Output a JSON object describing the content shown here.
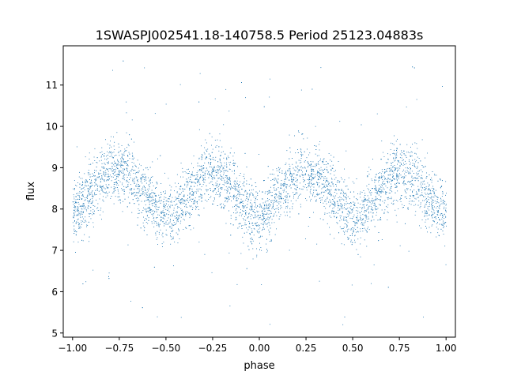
{
  "chart_data": {
    "type": "scatter",
    "title": "1SWASPJ002541.18-140758.5 Period 25123.04883s",
    "xlabel": "phase",
    "ylabel": "flux",
    "xlim": [
      -1.05,
      1.05
    ],
    "ylim": [
      4.9,
      11.95
    ],
    "xticks": [
      -1.0,
      -0.75,
      -0.5,
      -0.25,
      0.0,
      0.25,
      0.5,
      0.75,
      1.0
    ],
    "xtick_labels": [
      "−1.00",
      "−0.75",
      "−0.50",
      "−0.25",
      "0.00",
      "0.25",
      "0.50",
      "0.75",
      "1.00"
    ],
    "yticks": [
      5,
      6,
      7,
      8,
      9,
      10,
      11
    ],
    "ytick_labels": [
      "5",
      "6",
      "7",
      "8",
      "9",
      "10",
      "11"
    ],
    "grid": false,
    "marker_color": "#1f77b4",
    "series": [
      {
        "x": [
          -1.0,
          -0.95,
          -0.9,
          -0.85,
          -0.8,
          -0.75,
          -0.7,
          -0.65,
          -0.6,
          -0.55,
          -0.5,
          -0.45,
          -0.4,
          -0.35,
          -0.3,
          -0.25,
          -0.2,
          -0.15,
          -0.1,
          -0.05,
          0.0,
          0.05,
          0.1,
          0.15,
          0.2,
          0.25,
          0.3,
          0.35,
          0.4,
          0.45,
          0.5,
          0.55,
          0.6,
          0.65,
          0.7,
          0.75,
          0.8,
          0.85,
          0.9,
          0.95,
          1.0
        ],
        "y": [
          7.9,
          8.1,
          8.4,
          8.7,
          8.9,
          9.0,
          8.9,
          8.6,
          8.3,
          8.0,
          7.8,
          7.9,
          8.2,
          8.5,
          8.8,
          8.9,
          8.8,
          8.5,
          8.2,
          7.9,
          7.8,
          8.0,
          8.3,
          8.6,
          8.8,
          8.9,
          8.8,
          8.6,
          8.3,
          8.0,
          7.8,
          7.9,
          8.2,
          8.5,
          8.8,
          8.9,
          8.8,
          8.6,
          8.3,
          8.0,
          7.9
        ],
        "scatter_width": 0.7
      }
    ]
  }
}
